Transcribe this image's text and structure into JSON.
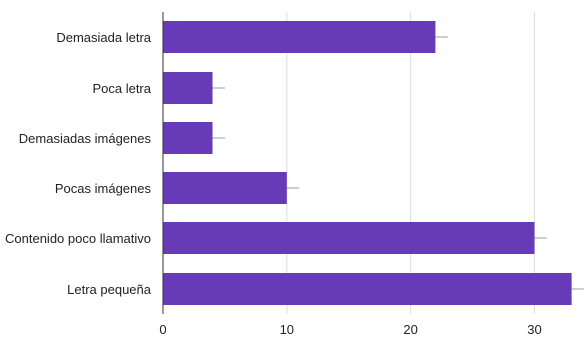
{
  "chart_data": {
    "type": "bar",
    "orientation": "horizontal",
    "categories": [
      "Demasiada letra",
      "Poca letra",
      "Demasiadas imágenes",
      "Pocas imágenes",
      "Contenido poco llamativo",
      "Letra pequeña"
    ],
    "values": [
      22,
      4,
      4,
      10,
      30,
      33
    ],
    "error_bar_extent": 1,
    "xlim": [
      0,
      34
    ],
    "xticks": [
      "0",
      "10",
      "20",
      "30"
    ],
    "xtick_values": [
      0,
      10,
      20,
      30
    ],
    "grid": true,
    "bar_color": "#673ab7",
    "error_bar_color": "#9e9e9e",
    "gridline_color": "#dcdcdc",
    "title": "",
    "xlabel": "",
    "ylabel": ""
  }
}
